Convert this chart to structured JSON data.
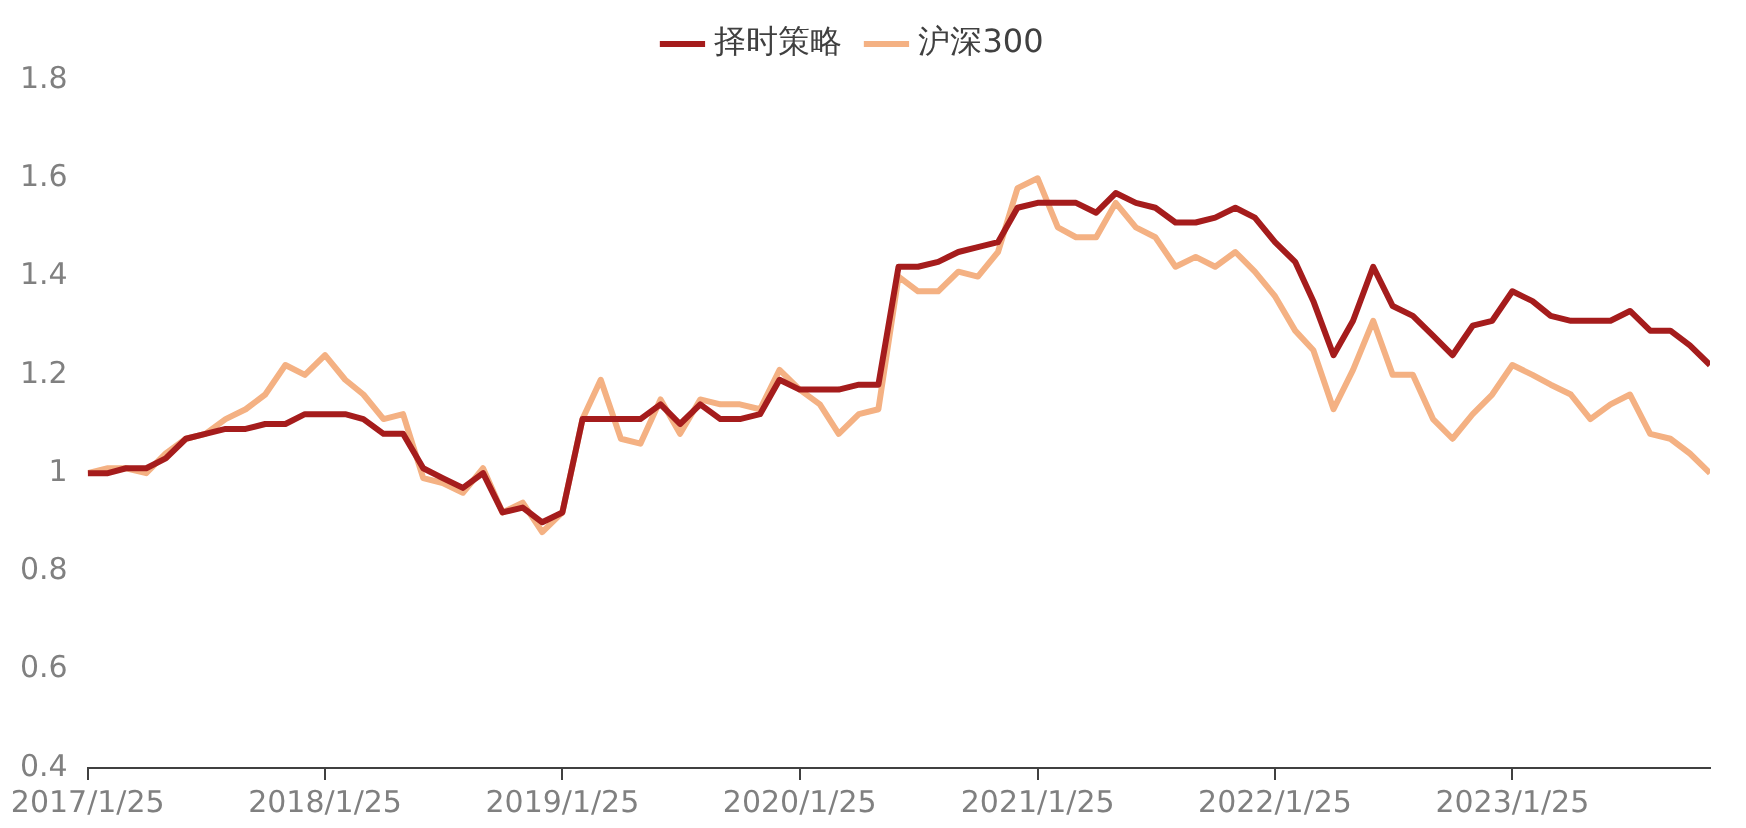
{
  "chart_data": {
    "type": "line",
    "legend": "top",
    "x": [
      "2017-01-25",
      "2017-02-25",
      "2017-03-25",
      "2017-04-25",
      "2017-05-25",
      "2017-06-25",
      "2017-07-25",
      "2017-08-25",
      "2017-09-25",
      "2017-10-25",
      "2017-11-25",
      "2017-12-25",
      "2018-01-25",
      "2018-02-25",
      "2018-03-25",
      "2018-04-25",
      "2018-05-25",
      "2018-06-25",
      "2018-07-25",
      "2018-08-25",
      "2018-09-25",
      "2018-10-25",
      "2018-11-25",
      "2018-12-25",
      "2019-01-25",
      "2019-02-25",
      "2019-03-25",
      "2019-04-25",
      "2019-05-25",
      "2019-06-25",
      "2019-07-25",
      "2019-08-25",
      "2019-09-25",
      "2019-10-25",
      "2019-11-25",
      "2019-12-25",
      "2020-01-25",
      "2020-02-25",
      "2020-03-25",
      "2020-04-25",
      "2020-05-25",
      "2020-06-25",
      "2020-07-25",
      "2020-08-25",
      "2020-09-25",
      "2020-10-25",
      "2020-11-25",
      "2020-12-25",
      "2021-01-25",
      "2021-02-25",
      "2021-03-25",
      "2021-04-25",
      "2021-05-25",
      "2021-06-25",
      "2021-07-25",
      "2021-08-25",
      "2021-09-25",
      "2021-10-25",
      "2021-11-25",
      "2021-12-25",
      "2022-01-25",
      "2022-02-25",
      "2022-03-25",
      "2022-04-25",
      "2022-05-25",
      "2022-06-25",
      "2022-07-25",
      "2022-08-25",
      "2022-09-25",
      "2022-10-25",
      "2022-11-25",
      "2022-12-25",
      "2023-01-25",
      "2023-02-25",
      "2023-03-25",
      "2023-04-25",
      "2023-05-25",
      "2023-06-25",
      "2023-07-25",
      "2023-08-25",
      "2023-09-25",
      "2023-10-25",
      "2023-11-25"
    ],
    "series": [
      {
        "name": "择时策略",
        "color": "#a51c1c",
        "values": [
          1.0,
          1.0,
          1.01,
          1.01,
          1.03,
          1.07,
          1.08,
          1.09,
          1.09,
          1.1,
          1.1,
          1.12,
          1.12,
          1.12,
          1.11,
          1.08,
          1.08,
          1.01,
          0.99,
          0.97,
          1.0,
          0.92,
          0.93,
          0.9,
          0.92,
          1.11,
          1.11,
          1.11,
          1.11,
          1.14,
          1.1,
          1.14,
          1.11,
          1.11,
          1.12,
          1.19,
          1.17,
          1.17,
          1.17,
          1.18,
          1.18,
          1.42,
          1.42,
          1.43,
          1.45,
          1.46,
          1.47,
          1.54,
          1.55,
          1.55,
          1.55,
          1.53,
          1.57,
          1.55,
          1.54,
          1.51,
          1.51,
          1.52,
          1.54,
          1.52,
          1.47,
          1.43,
          1.35,
          1.24,
          1.31,
          1.42,
          1.34,
          1.32,
          1.28,
          1.24,
          1.3,
          1.31,
          1.37,
          1.35,
          1.32,
          1.31,
          1.31,
          1.31,
          1.33,
          1.29,
          1.29,
          1.26,
          1.22
        ]
      },
      {
        "name": "沪深300",
        "color": "#f4b183",
        "values": [
          1.0,
          1.01,
          1.01,
          1.0,
          1.04,
          1.07,
          1.08,
          1.11,
          1.13,
          1.16,
          1.22,
          1.2,
          1.24,
          1.19,
          1.16,
          1.11,
          1.12,
          0.99,
          0.98,
          0.96,
          1.01,
          0.92,
          0.94,
          0.88,
          0.92,
          1.11,
          1.19,
          1.07,
          1.06,
          1.15,
          1.08,
          1.15,
          1.14,
          1.14,
          1.13,
          1.21,
          1.17,
          1.14,
          1.08,
          1.12,
          1.13,
          1.4,
          1.37,
          1.37,
          1.41,
          1.4,
          1.45,
          1.58,
          1.6,
          1.5,
          1.48,
          1.48,
          1.55,
          1.5,
          1.48,
          1.42,
          1.44,
          1.42,
          1.45,
          1.41,
          1.36,
          1.29,
          1.25,
          1.13,
          1.21,
          1.31,
          1.2,
          1.2,
          1.11,
          1.07,
          1.12,
          1.16,
          1.22,
          1.2,
          1.18,
          1.16,
          1.11,
          1.14,
          1.16,
          1.08,
          1.07,
          1.04,
          1.0
        ]
      }
    ],
    "xlim": [
      "2017-01-25",
      "2023-11-25"
    ],
    "xticks": [
      {
        "value": "2017-01-25",
        "label": "2017/1/25"
      },
      {
        "value": "2018-01-25",
        "label": "2018/1/25"
      },
      {
        "value": "2019-01-25",
        "label": "2019/1/25"
      },
      {
        "value": "2020-01-25",
        "label": "2020/1/25"
      },
      {
        "value": "2021-01-25",
        "label": "2021/1/25"
      },
      {
        "value": "2022-01-25",
        "label": "2022/1/25"
      },
      {
        "value": "2023-01-25",
        "label": "2023/1/25"
      }
    ],
    "ylim": [
      0.4,
      1.8
    ],
    "yticks": [
      0.4,
      0.6,
      0.8,
      1,
      1.2,
      1.4,
      1.6,
      1.8
    ],
    "marker": "none",
    "line_style": "solid"
  }
}
